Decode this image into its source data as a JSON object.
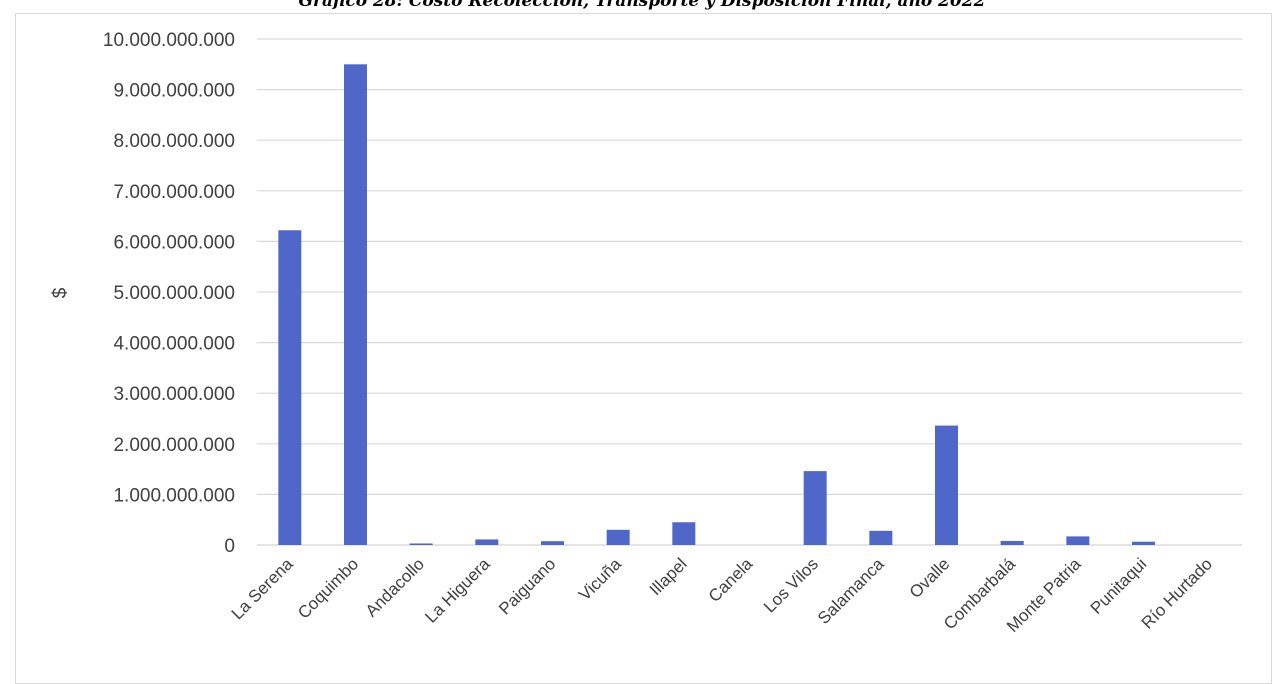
{
  "chart_data": {
    "type": "bar",
    "title": "Gráfico 28: Costo Recolección, Transporte y Disposición Final, año 2022",
    "xlabel": "",
    "ylabel": "$",
    "ylim": [
      0,
      10000000000
    ],
    "yticks": [
      0,
      1000000000,
      2000000000,
      3000000000,
      4000000000,
      5000000000,
      6000000000,
      7000000000,
      8000000000,
      9000000000,
      10000000000
    ],
    "ytick_labels": [
      "0",
      "1.000.000.000",
      "2.000.000.000",
      "3.000.000.000",
      "4.000.000.000",
      "5.000.000.000",
      "6.000.000.000",
      "7.000.000.000",
      "8.000.000.000",
      "9.000.000.000",
      "10.000.000.000"
    ],
    "categories": [
      "La Serena",
      "Coquimbo",
      "Andacollo",
      "La Higuera",
      "Paiguano",
      "Vicuña",
      "Illapel",
      "Canela",
      "Los Vilos",
      "Salamanca",
      "Ovalle",
      "Combarbalá",
      "Monte Patria",
      "Punitaqui",
      "Río Hurtado"
    ],
    "values": [
      6220000000,
      9500000000,
      30000000,
      110000000,
      75000000,
      300000000,
      450000000,
      0,
      1460000000,
      280000000,
      2360000000,
      80000000,
      170000000,
      65000000,
      0
    ],
    "grid": true,
    "legend": "none",
    "bar_color": "#4F67C8",
    "grid_color": "#d9d9d9"
  }
}
